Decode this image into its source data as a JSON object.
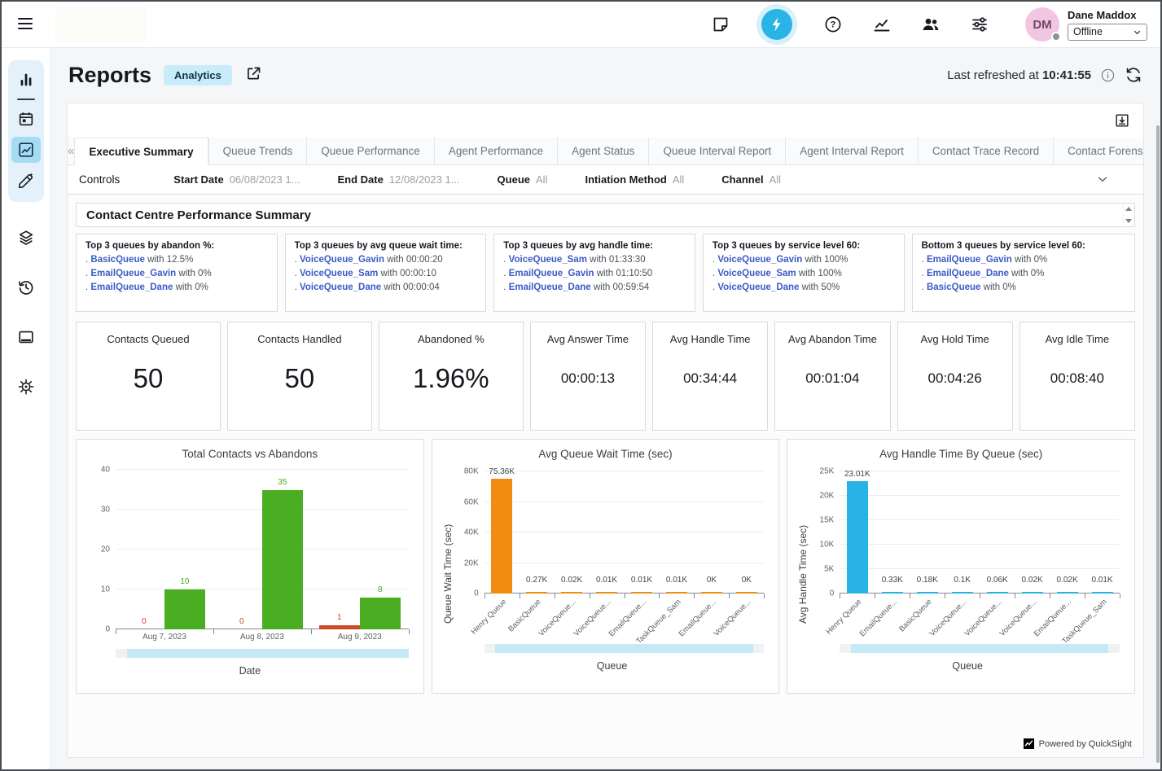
{
  "app": {
    "title": "Reports",
    "badge": "Analytics",
    "last_refreshed_label": "Last refreshed at",
    "last_refreshed_time": "10:41:55"
  },
  "topbar": {
    "user_name": "Dane Maddox",
    "user_initials": "DM",
    "status_value": "Offline",
    "icons": [
      {
        "name": "note-icon"
      },
      {
        "name": "lightning-icon",
        "primary": true
      },
      {
        "name": "help-icon"
      },
      {
        "name": "chart-line-icon"
      },
      {
        "name": "people-icon"
      },
      {
        "name": "sliders-icon"
      }
    ]
  },
  "sidebar": {
    "group_items": [
      {
        "name": "bar-chart-icon"
      },
      {
        "name": "calendar-icon"
      },
      {
        "name": "chart-box-icon",
        "active": true
      },
      {
        "name": "design-icon"
      }
    ],
    "items": [
      {
        "name": "layers-icon"
      },
      {
        "name": "history-icon"
      },
      {
        "name": "window-icon"
      },
      {
        "name": "gear-icon"
      }
    ]
  },
  "tabs": {
    "active": "Executive Summary",
    "items": [
      "Executive Summary",
      "Queue Trends",
      "Queue Performance",
      "Agent Performance",
      "Agent Status",
      "Queue Interval Report",
      "Agent Interval Report",
      "Contact Trace Record",
      "Contact Forensics"
    ]
  },
  "controls": {
    "label": "Controls",
    "filters": [
      {
        "label": "Start Date",
        "value": "06/08/2023 1..."
      },
      {
        "label": "End Date",
        "value": "12/08/2023 1..."
      },
      {
        "label": "Queue",
        "value": "All"
      },
      {
        "label": "Intiation Method",
        "value": "All"
      },
      {
        "label": "Channel",
        "value": "All"
      }
    ]
  },
  "summary": {
    "title": "Contact Centre Performance Summary",
    "insights": [
      {
        "title": "Top 3 queues by abandon %:",
        "items": [
          {
            "queue": "BasicQueue",
            "rest": "with 12.5%"
          },
          {
            "queue": "EmailQueue_Gavin",
            "rest": "with 0%"
          },
          {
            "queue": "EmailQueue_Dane",
            "rest": "with 0%"
          }
        ]
      },
      {
        "title": "Top 3 queues by avg queue wait time:",
        "items": [
          {
            "queue": "VoiceQueue_Gavin",
            "rest": "with 00:00:20"
          },
          {
            "queue": "VoiceQueue_Sam",
            "rest": "with 00:00:10"
          },
          {
            "queue": "VoiceQueue_Dane",
            "rest": "with 00:00:04"
          }
        ]
      },
      {
        "title": "Top 3 queues by avg handle time:",
        "items": [
          {
            "queue": "VoiceQueue_Sam",
            "rest": "with 01:33:30"
          },
          {
            "queue": "EmailQueue_Gavin",
            "rest": "with 01:10:50"
          },
          {
            "queue": "EmailQueue_Dane",
            "rest": "with 00:59:54"
          }
        ]
      },
      {
        "title": "Top 3 queues by service level 60:",
        "items": [
          {
            "queue": "VoiceQueue_Gavin",
            "rest": "with 100%"
          },
          {
            "queue": "VoiceQueue_Sam",
            "rest": "with 100%"
          },
          {
            "queue": "VoiceQueue_Dane",
            "rest": "with 50%"
          }
        ]
      },
      {
        "title": "Bottom 3 queues by service level 60:",
        "items": [
          {
            "queue": "EmailQueue_Gavin",
            "rest": "with 0%"
          },
          {
            "queue": "EmailQueue_Dane",
            "rest": "with 0%"
          },
          {
            "queue": "BasicQueue",
            "rest": "with 0%"
          }
        ]
      }
    ],
    "kpis": [
      {
        "label": "Contacts Queued",
        "value": "50",
        "size": "large"
      },
      {
        "label": "Contacts Handled",
        "value": "50",
        "size": "large"
      },
      {
        "label": "Abandoned %",
        "value": "1.96%",
        "size": "large"
      },
      {
        "label": "Avg Answer Time",
        "value": "00:00:13",
        "size": "small"
      },
      {
        "label": "Avg Handle Time",
        "value": "00:34:44",
        "size": "small"
      },
      {
        "label": "Avg Abandon Time",
        "value": "00:01:04",
        "size": "small"
      },
      {
        "label": "Avg Hold Time",
        "value": "00:04:26",
        "size": "small"
      },
      {
        "label": "Avg Idle Time",
        "value": "00:08:40",
        "size": "small"
      }
    ]
  },
  "footer": {
    "powered_by": "Powered by QuickSight"
  },
  "chart_data": [
    {
      "type": "bar",
      "title": "Total Contacts vs Abandons",
      "categories": [
        "Aug 7, 2023",
        "Aug 8, 2023",
        "Aug 9, 2023"
      ],
      "series": [
        {
          "name": "Abandons",
          "color": "#cc4b25",
          "values": [
            0,
            0,
            1
          ],
          "labels": [
            "0",
            "0",
            "1"
          ]
        },
        {
          "name": "Total Contacts",
          "color": "#49ae21",
          "values": [
            10,
            35,
            8
          ],
          "labels": [
            "10",
            "35",
            "8"
          ]
        }
      ],
      "xlabel": "Date",
      "ylabel": "",
      "ylim": [
        0,
        40
      ],
      "yticks": [
        0,
        10,
        20,
        30,
        40
      ],
      "ytick_labels": [
        "0",
        "10",
        "20",
        "30",
        "40"
      ],
      "grid": true,
      "legend": "none"
    },
    {
      "type": "bar",
      "title": "Avg Queue Wait Time (sec)",
      "categories": [
        "Henry Queue",
        "BasicQueue",
        "VoiceQueue...",
        "VoiceQueue...",
        "EmailQueue...",
        "TaskQueue_Sam",
        "EmailQueue...",
        "VoiceQueue..."
      ],
      "values": [
        75360,
        270,
        20,
        10,
        10,
        10,
        0,
        0
      ],
      "labels": [
        "75.36K",
        "0.27K",
        "0.02K",
        "0.01K",
        "0.01K",
        "0.01K",
        "0K",
        "0K"
      ],
      "color": "#f18b11",
      "xlabel": "Queue",
      "ylabel": "Queue Wait Time (sec)",
      "ylim": [
        0,
        80000
      ],
      "yticks": [
        0,
        20000,
        40000,
        60000,
        80000
      ],
      "ytick_labels": [
        "0",
        "20K",
        "40K",
        "60K",
        "80K"
      ],
      "grid": true,
      "legend": "none"
    },
    {
      "type": "bar",
      "title": "Avg Handle Time By Queue (sec)",
      "categories": [
        "Henry Queue",
        "EmailQueue...",
        "BasicQueue",
        "VoiceQueue...",
        "VoiceQueue...",
        "VoiceQueue...",
        "EmailQueue...",
        "TaskQueue_Sam"
      ],
      "values": [
        23010,
        330,
        180,
        100,
        60,
        20,
        20,
        10
      ],
      "labels": [
        "23.01K",
        "0.33K",
        "0.18K",
        "0.1K",
        "0.06K",
        "0.02K",
        "0.02K",
        "0.01K"
      ],
      "color": "#27b3e5",
      "xlabel": "Queue",
      "ylabel": "Avg Handle Time (sec)",
      "ylim": [
        0,
        25000
      ],
      "yticks": [
        0,
        5000,
        10000,
        15000,
        20000,
        25000
      ],
      "ytick_labels": [
        "0",
        "5K",
        "10K",
        "15K",
        "20K",
        "25K"
      ],
      "grid": true,
      "legend": "none"
    }
  ]
}
